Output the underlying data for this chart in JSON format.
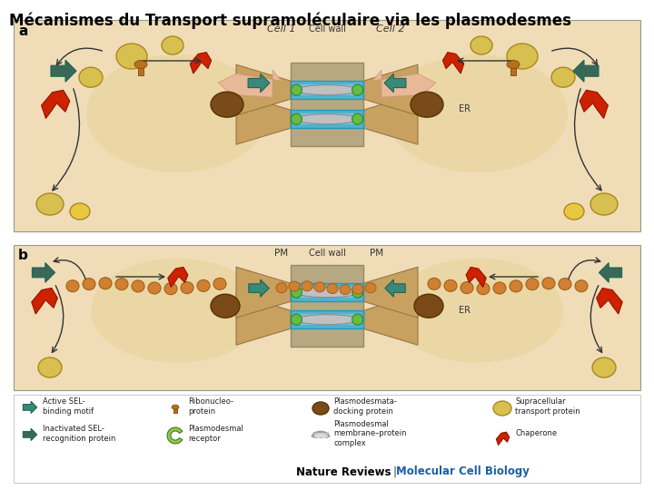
{
  "title": "Mécanismes du Transport supramoléculaire via les plasmodesmes",
  "title_fontsize": 12,
  "title_color": "#000000",
  "figure_bg": "#ffffff",
  "footer_left": "Nature Reviews",
  "footer_right": "Molecular Cell Biology",
  "footer_color_left": "#000000",
  "footer_color_right": "#1a5fa8",
  "footer_fontsize": 8.5,
  "panel_bg": "#f0ddb8",
  "cell_wall_color": "#b8a882",
  "tube_color": "#4fb3cc",
  "tube_inner_color": "#8dd4e4",
  "funnel_color": "#c8a060",
  "er_color": "#c0c0c0",
  "green_dot_color": "#66bb44",
  "brown_oval_color": "#7a4a18",
  "yellow_oval_color": "#d8c050",
  "orange_bead_color": "#d08030",
  "chaperone_color": "#cc2200",
  "sel_color": "#3a8878",
  "sel_inact_color": "#3a6858",
  "ribo_color": "#b87020",
  "wavy_color": "#d0c0a0",
  "pink_wavy_color": "#e8b0a0",
  "leg_bg": "#ffffff",
  "leg_border": "#cccccc"
}
